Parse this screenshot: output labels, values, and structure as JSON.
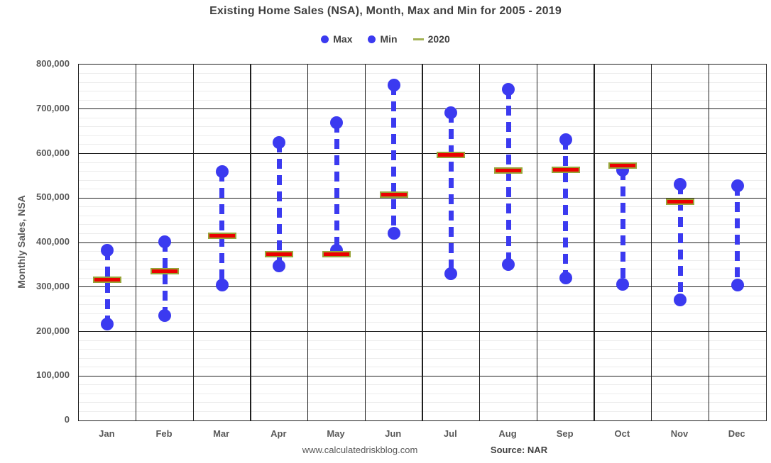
{
  "title": "Existing Home Sales (NSA), Month, Max and Min for 2005 - 2019",
  "legend": [
    {
      "label": "Max",
      "marker": "circle",
      "color": "#3b3af0"
    },
    {
      "label": "Min",
      "marker": "circle",
      "color": "#3b3af0"
    },
    {
      "label": "2020",
      "marker": "dash",
      "color": "#a2b254"
    }
  ],
  "colors": {
    "series_blue": "#3b3af0",
    "bar_red": "#ec0000",
    "bar_border_olive": "#98a439",
    "legend_dash_olive": "#a2b254",
    "title_text": "#404040",
    "axis_text": "#595959",
    "major_grid": "#1f1f1f",
    "minor_grid": "#ececec"
  },
  "chart_data": {
    "type": "scatter",
    "title": "Existing Home Sales (NSA), Month, Max and Min for 2005 - 2019",
    "xlabel": "",
    "ylabel": "Monthly Sales, NSA",
    "ylim": [
      0,
      800000
    ],
    "y_major_step": 100000,
    "y_minor_step": 20000,
    "y_tick_labels": [
      "0",
      "100,000",
      "200,000",
      "300,000",
      "400,000",
      "500,000",
      "600,000",
      "700,000",
      "800,000"
    ],
    "grid": "both",
    "legend_position": "top",
    "categories": [
      "Jan",
      "Feb",
      "Mar",
      "Apr",
      "May",
      "Jun",
      "Jul",
      "Aug",
      "Sep",
      "Oct",
      "Nov",
      "Dec"
    ],
    "series": [
      {
        "name": "Max",
        "marker": "circle",
        "color": "#3b3af0",
        "values": [
          383000,
          401000,
          559000,
          625000,
          669000,
          753000,
          691000,
          744000,
          631000,
          563000,
          531000,
          528000
        ]
      },
      {
        "name": "Min",
        "marker": "circle",
        "color": "#3b3af0",
        "values": [
          217000,
          236000,
          304000,
          348000,
          383000,
          420000,
          330000,
          350000,
          321000,
          306000,
          271000,
          305000
        ]
      },
      {
        "name": "2020",
        "marker": "bar",
        "color": "#ec0000",
        "values": [
          317000,
          335000,
          415000,
          373000,
          373000,
          507000,
          597000,
          562000,
          564000,
          573000,
          492000,
          null
        ]
      }
    ]
  },
  "footer": {
    "site": "www.calculatedriskblog.com",
    "source": "Source: NAR"
  }
}
